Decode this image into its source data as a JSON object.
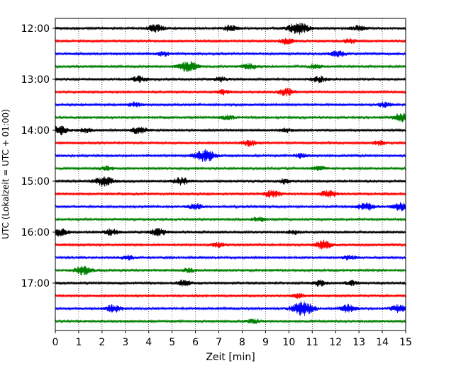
{
  "chart_data": {
    "type": "line",
    "subtype": "helicorder",
    "xlabel": "Zeit  [min]",
    "ylabel": "UTC (Lokalzeit = UTC + 01:00)",
    "xlim": [
      0,
      15
    ],
    "x_ticks": [
      "0",
      "1",
      "2",
      "3",
      "4",
      "5",
      "6",
      "7",
      "8",
      "9",
      "10",
      "11",
      "12",
      "13",
      "14",
      "15"
    ],
    "y_tick_labels": [
      "12:00",
      "13:00",
      "14:00",
      "15:00",
      "16:00",
      "17:00"
    ],
    "grid": "vertical dotted",
    "trace_colors": [
      "#000000",
      "#ff0000",
      "#0000ff",
      "#008000"
    ],
    "traces": [
      {
        "start": "12:00",
        "events": [
          {
            "t": 4.3,
            "a": 5
          },
          {
            "t": 7.5,
            "a": 4
          },
          {
            "t": 10.4,
            "a": 8
          },
          {
            "t": 13.0,
            "a": 4
          }
        ]
      },
      {
        "start": "12:15",
        "events": [
          {
            "t": 9.9,
            "a": 4
          },
          {
            "t": 12.6,
            "a": 3
          }
        ]
      },
      {
        "start": "12:30",
        "events": [
          {
            "t": 4.6,
            "a": 3
          },
          {
            "t": 12.1,
            "a": 4
          }
        ]
      },
      {
        "start": "12:45",
        "events": [
          {
            "t": 5.7,
            "a": 7
          },
          {
            "t": 8.3,
            "a": 4
          },
          {
            "t": 11.1,
            "a": 3
          }
        ]
      },
      {
        "start": "13:00",
        "events": [
          {
            "t": 3.6,
            "a": 4
          },
          {
            "t": 7.1,
            "a": 3
          },
          {
            "t": 11.3,
            "a": 4
          }
        ]
      },
      {
        "start": "13:15",
        "events": [
          {
            "t": 7.2,
            "a": 3
          },
          {
            "t": 9.9,
            "a": 5
          }
        ]
      },
      {
        "start": "13:30",
        "events": [
          {
            "t": 3.4,
            "a": 3
          },
          {
            "t": 14.1,
            "a": 3
          }
        ]
      },
      {
        "start": "13:45",
        "events": [
          {
            "t": 7.4,
            "a": 3
          },
          {
            "t": 14.8,
            "a": 6
          }
        ]
      },
      {
        "start": "14:00",
        "events": [
          {
            "t": 0.2,
            "a": 6
          },
          {
            "t": 1.3,
            "a": 3
          },
          {
            "t": 3.6,
            "a": 5
          },
          {
            "t": 9.9,
            "a": 3
          }
        ]
      },
      {
        "start": "14:15",
        "events": [
          {
            "t": 8.3,
            "a": 4
          },
          {
            "t": 13.9,
            "a": 3
          }
        ]
      },
      {
        "start": "14:30",
        "events": [
          {
            "t": 6.4,
            "a": 8
          },
          {
            "t": 10.5,
            "a": 3
          }
        ]
      },
      {
        "start": "14:45",
        "events": [
          {
            "t": 2.2,
            "a": 3
          },
          {
            "t": 11.3,
            "a": 3
          }
        ]
      },
      {
        "start": "15:00",
        "events": [
          {
            "t": 2.1,
            "a": 7
          },
          {
            "t": 5.4,
            "a": 5
          },
          {
            "t": 9.8,
            "a": 3
          }
        ]
      },
      {
        "start": "15:15",
        "events": [
          {
            "t": 9.3,
            "a": 5
          },
          {
            "t": 11.7,
            "a": 5
          }
        ]
      },
      {
        "start": "15:30",
        "events": [
          {
            "t": 6.0,
            "a": 4
          },
          {
            "t": 13.3,
            "a": 5
          },
          {
            "t": 14.8,
            "a": 5
          }
        ]
      },
      {
        "start": "15:45",
        "events": [
          {
            "t": 8.7,
            "a": 3
          }
        ]
      },
      {
        "start": "16:00",
        "events": [
          {
            "t": 0.2,
            "a": 5
          },
          {
            "t": 2.4,
            "a": 4
          },
          {
            "t": 4.4,
            "a": 5
          },
          {
            "t": 10.2,
            "a": 3
          }
        ]
      },
      {
        "start": "16:15",
        "events": [
          {
            "t": 7.0,
            "a": 3
          },
          {
            "t": 11.5,
            "a": 6
          }
        ]
      },
      {
        "start": "16:30",
        "events": [
          {
            "t": 3.1,
            "a": 3
          },
          {
            "t": 12.6,
            "a": 3
          }
        ]
      },
      {
        "start": "16:45",
        "events": [
          {
            "t": 1.2,
            "a": 6
          },
          {
            "t": 5.7,
            "a": 3
          }
        ]
      },
      {
        "start": "17:00",
        "events": [
          {
            "t": 5.5,
            "a": 4
          },
          {
            "t": 11.3,
            "a": 4
          },
          {
            "t": 12.7,
            "a": 3
          }
        ]
      },
      {
        "start": "17:15",
        "events": [
          {
            "t": 10.4,
            "a": 3
          }
        ]
      },
      {
        "start": "17:30",
        "events": [
          {
            "t": 2.5,
            "a": 5
          },
          {
            "t": 10.6,
            "a": 9
          },
          {
            "t": 12.5,
            "a": 5
          },
          {
            "t": 14.7,
            "a": 5
          }
        ]
      },
      {
        "start": "17:45",
        "events": [
          {
            "t": 8.5,
            "a": 3
          }
        ]
      }
    ]
  }
}
